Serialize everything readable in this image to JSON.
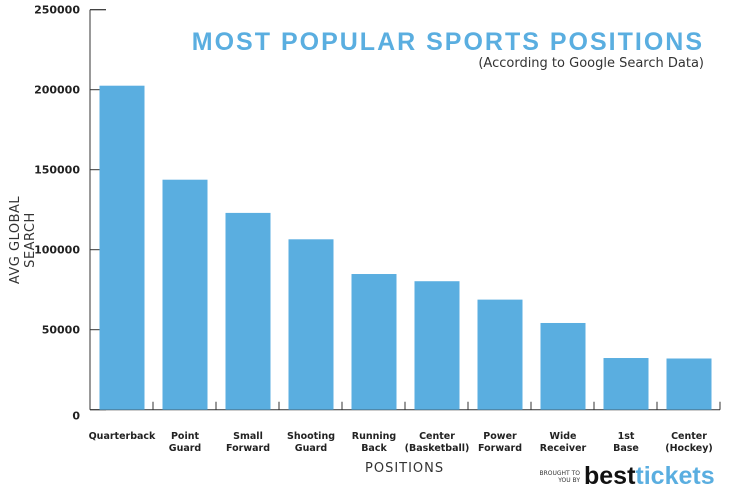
{
  "chart_data": {
    "type": "bar",
    "title": "MOST POPULAR SPORTS POSITIONS",
    "subtitle": "(According to Google Search Data)",
    "xlabel": "POSITIONS",
    "ylabel": "AVG GLOBAL SEARCH",
    "ylim": [
      0,
      250000
    ],
    "yticks": [
      "0",
      "50000",
      "100000",
      "150000",
      "200000",
      "250000"
    ],
    "categories": [
      [
        "Quarterback"
      ],
      [
        "Point",
        "Guard"
      ],
      [
        "Small",
        "Forward"
      ],
      [
        "Shooting",
        "Guard"
      ],
      [
        "Running",
        "Back"
      ],
      [
        "Center",
        "(Basketball)"
      ],
      [
        "Power",
        "Forward"
      ],
      [
        "Wide",
        "Receiver"
      ],
      [
        "1st",
        "Base"
      ],
      [
        "Center",
        "(Hockey)"
      ]
    ],
    "values": [
      202500,
      143750,
      123000,
      106500,
      84800,
      80300,
      68800,
      54200,
      32300,
      32000
    ],
    "bar_color": "#5aaee0",
    "grid": false
  },
  "branding": {
    "prefix_line1": "BROUGHT TO",
    "prefix_line2": "YOU BY",
    "best": "best",
    "tickets": "tickets"
  }
}
